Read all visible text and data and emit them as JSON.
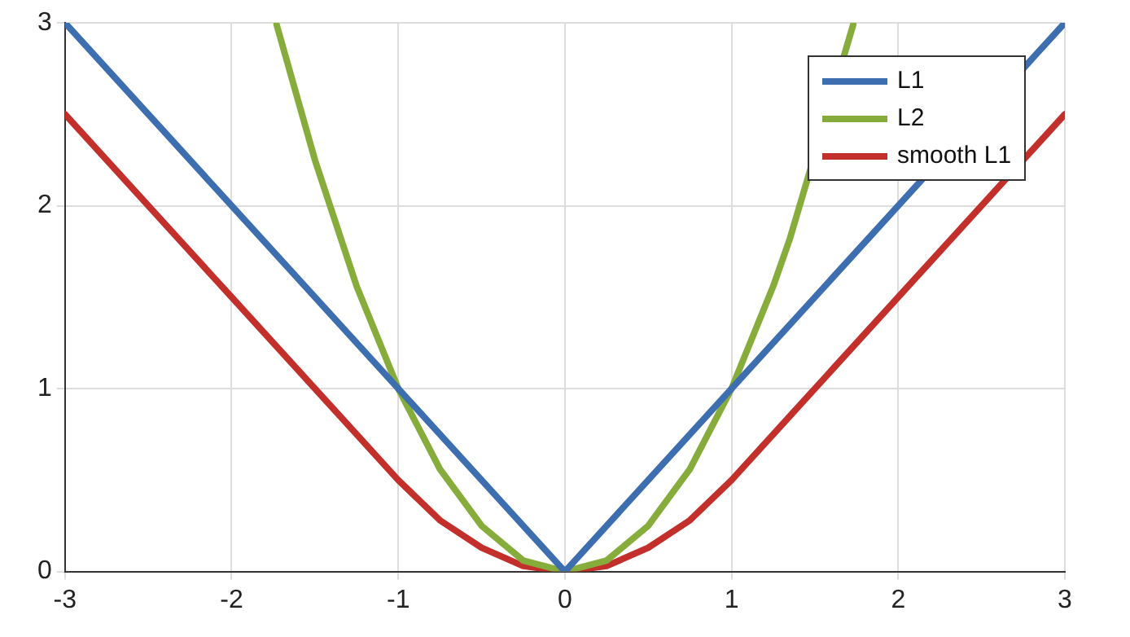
{
  "chart_data": {
    "type": "line",
    "series": [
      {
        "name": "L1",
        "color": "#3d6fb0",
        "x": [
          -3,
          0,
          3
        ],
        "values": [
          3,
          0,
          3
        ]
      },
      {
        "name": "L2",
        "color": "#86ad3c",
        "x": [
          -1.73,
          -1.5,
          -1.25,
          -1,
          -0.75,
          -0.5,
          -0.25,
          0,
          0.25,
          0.5,
          0.75,
          1,
          1.25,
          1.35,
          1.73
        ],
        "values": [
          2.99,
          2.25,
          1.56,
          1,
          0.56,
          0.25,
          0.06,
          0,
          0.06,
          0.25,
          0.56,
          1,
          1.56,
          1.82,
          2.99
        ]
      },
      {
        "name": "smooth L1",
        "color": "#c3302b",
        "x": [
          -3,
          -2,
          -1,
          -0.75,
          -0.5,
          -0.25,
          0,
          0.25,
          0.5,
          0.75,
          1,
          2,
          3
        ],
        "values": [
          2.5,
          1.5,
          0.5,
          0.28,
          0.13,
          0.03,
          0,
          0.03,
          0.13,
          0.28,
          0.5,
          1.5,
          2.5
        ]
      }
    ],
    "xlim": [
      -3,
      3
    ],
    "xticks": [
      -3,
      -2,
      -1,
      0,
      1,
      2,
      3
    ],
    "ylim": [
      0,
      3
    ],
    "yticks": [
      0,
      1,
      2,
      3
    ],
    "grid": true,
    "legend": "top right",
    "marker": "none",
    "line_style": "solid"
  }
}
